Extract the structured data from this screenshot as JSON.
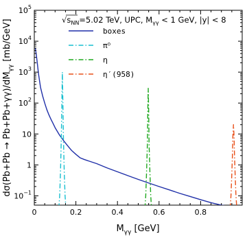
{
  "chart_data": {
    "type": "line",
    "header": "√s_NN=5.02 TeV, UPC, M_γγ < 1 GeV, |y| < 8",
    "header_parts": {
      "sqrt": "√",
      "s_main": "s",
      "s_sub": "NN",
      "rest_a": "=5.02 TeV, UPC, M",
      "m_sub": "γγ",
      "rest_b": " < 1 GeV, |y| < 8"
    },
    "xlabel": {
      "main": "M",
      "sub": "γγ",
      "unit": " [GeV]"
    },
    "ylabel": {
      "part1": "dσ(Pb+Pb → Pb+Pb+γγ)/dM",
      "sub": "γγ",
      "part2": " [mb/GeV]"
    },
    "xlim": [
      0,
      1.0
    ],
    "ylim": [
      0.05,
      100000
    ],
    "yscale": "log",
    "x_ticks": [
      "0",
      "0.2",
      "0.4",
      "0.6",
      "0.8"
    ],
    "x_tick_values": [
      0,
      0.2,
      0.4,
      0.6,
      0.8
    ],
    "y_ticks": [
      {
        "value": 0.1,
        "base": "10",
        "exp": "−1"
      },
      {
        "value": 1,
        "base": "1",
        "exp": ""
      },
      {
        "value": 10,
        "base": "10",
        "exp": ""
      },
      {
        "value": 100,
        "base": "10",
        "exp": "2"
      },
      {
        "value": 1000,
        "base": "10",
        "exp": "3"
      },
      {
        "value": 10000,
        "base": "10",
        "exp": "4"
      },
      {
        "value": 100000,
        "base": "10",
        "exp": "5"
      }
    ],
    "grid": false,
    "legend_position": "top-right",
    "series": [
      {
        "name": "boxes",
        "color": "#1f2fa8",
        "style": "solid",
        "x": [
          0.005,
          0.01,
          0.015,
          0.02,
          0.03,
          0.04,
          0.05,
          0.06,
          0.07,
          0.08,
          0.09,
          0.1,
          0.12,
          0.14,
          0.16,
          0.18,
          0.2,
          0.22,
          0.24,
          0.26,
          0.3,
          0.35,
          0.4,
          0.45,
          0.5,
          0.55,
          0.6,
          0.65,
          0.7,
          0.75,
          0.8,
          0.85,
          0.9,
          0.95,
          1.0
        ],
        "y": [
          6000,
          3500,
          1800,
          900,
          320,
          170,
          100,
          62,
          42,
          30,
          22,
          16,
          9.5,
          6.2,
          4.2,
          2.9,
          2.2,
          1.7,
          1.5,
          1.35,
          1.1,
          0.8,
          0.6,
          0.45,
          0.34,
          0.26,
          0.2,
          0.155,
          0.12,
          0.095,
          0.075,
          0.06,
          0.05,
          0.045,
          0.04
        ]
      },
      {
        "name": "π⁰",
        "color": "#17becf",
        "style": "dashdot",
        "x": [
          0.118,
          0.122,
          0.126,
          0.13,
          0.133,
          0.135,
          0.137,
          0.14,
          0.144,
          0.148,
          0.152
        ],
        "y": [
          0.04,
          0.1,
          0.6,
          8,
          150,
          1000,
          150,
          8,
          0.6,
          0.1,
          0.04
        ]
      },
      {
        "name": "η",
        "color": "#1fa81f",
        "style": "dashdot",
        "x": [
          0.532,
          0.536,
          0.54,
          0.544,
          0.546,
          0.548,
          0.55,
          0.552,
          0.556,
          0.56,
          0.564
        ],
        "y": [
          0.04,
          0.1,
          0.6,
          5,
          60,
          300,
          60,
          5,
          0.6,
          0.1,
          0.04
        ]
      },
      {
        "name": "η′(958)",
        "color": "#e8501a",
        "style": "dashdot",
        "x": [
          0.942,
          0.946,
          0.95,
          0.953,
          0.955,
          0.958,
          0.961,
          0.963,
          0.966,
          0.97,
          0.974
        ],
        "y": [
          0.04,
          0.1,
          0.5,
          2,
          8,
          20,
          8,
          2,
          0.5,
          0.1,
          0.04
        ]
      }
    ],
    "legend": [
      {
        "label": "boxes",
        "mono": true,
        "color": "#1f2fa8",
        "style": "solid"
      },
      {
        "label": "π⁰",
        "mono": false,
        "color": "#17becf",
        "style": "dashdot"
      },
      {
        "label": "η",
        "mono": false,
        "color": "#1fa81f",
        "style": "dashdot"
      },
      {
        "label": "η′(958)",
        "mono": true,
        "color": "#e8501a",
        "style": "dashdot"
      }
    ]
  }
}
